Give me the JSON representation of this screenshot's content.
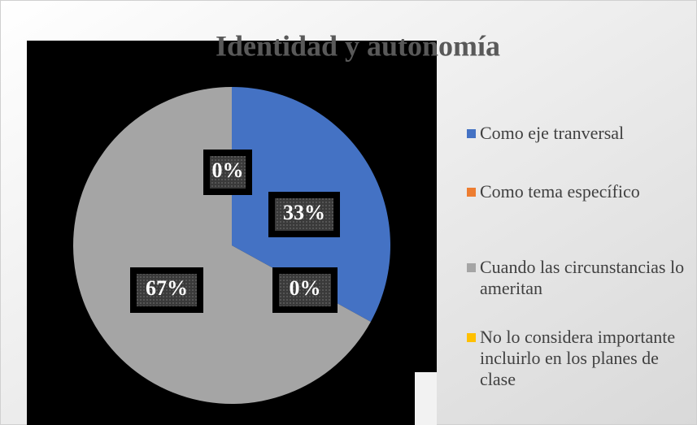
{
  "chart_data": {
    "type": "pie",
    "title": "Identidad y autonomía",
    "categories": [
      "Como eje tranversal",
      "Como tema específico",
      "Cuando las circunstancias lo ameritan",
      "No lo considera importante incluirlo en los planes de clase"
    ],
    "values": [
      33,
      0,
      67,
      0
    ],
    "value_labels": [
      "33%",
      "0%",
      "67%",
      "0%"
    ],
    "colors": [
      "#4472c4",
      "#ed7d31",
      "#a5a5a5",
      "#ffc000"
    ]
  }
}
